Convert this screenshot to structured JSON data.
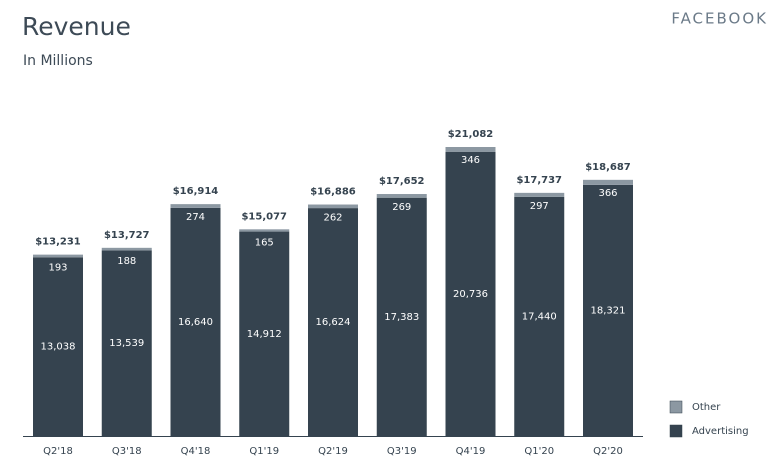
{
  "chart_data": {
    "type": "stacked-bar",
    "title": "Revenue",
    "subtitle": "In Millions",
    "brand": "FACEBOOK",
    "categories": [
      "Q2'18",
      "Q3'18",
      "Q4'18",
      "Q1'19",
      "Q2'19",
      "Q3'19",
      "Q4'19",
      "Q1'20",
      "Q2'20"
    ],
    "series": [
      {
        "name": "Advertising",
        "color": "#35434f",
        "values": [
          13038,
          13539,
          16640,
          14912,
          16624,
          17383,
          20736,
          17440,
          18321
        ],
        "value_labels": [
          "13,038",
          "13,539",
          "16,640",
          "14,912",
          "16,624",
          "17,383",
          "20,736",
          "17,440",
          "18,321"
        ]
      },
      {
        "name": "Other",
        "color": "#8c98a2",
        "values": [
          193,
          188,
          274,
          165,
          262,
          269,
          346,
          297,
          366
        ],
        "value_labels": [
          "193",
          "188",
          "274",
          "165",
          "262",
          "269",
          "346",
          "297",
          "366"
        ]
      }
    ],
    "totals": [
      13231,
      13727,
      16914,
      15077,
      16886,
      17652,
      21082,
      17737,
      18687
    ],
    "total_labels": [
      "$13,231",
      "$13,727",
      "$16,914",
      "$15,077",
      "$16,886",
      "$17,652",
      "$21,082",
      "$17,737",
      "$18,687"
    ],
    "legend": "lower right"
  }
}
